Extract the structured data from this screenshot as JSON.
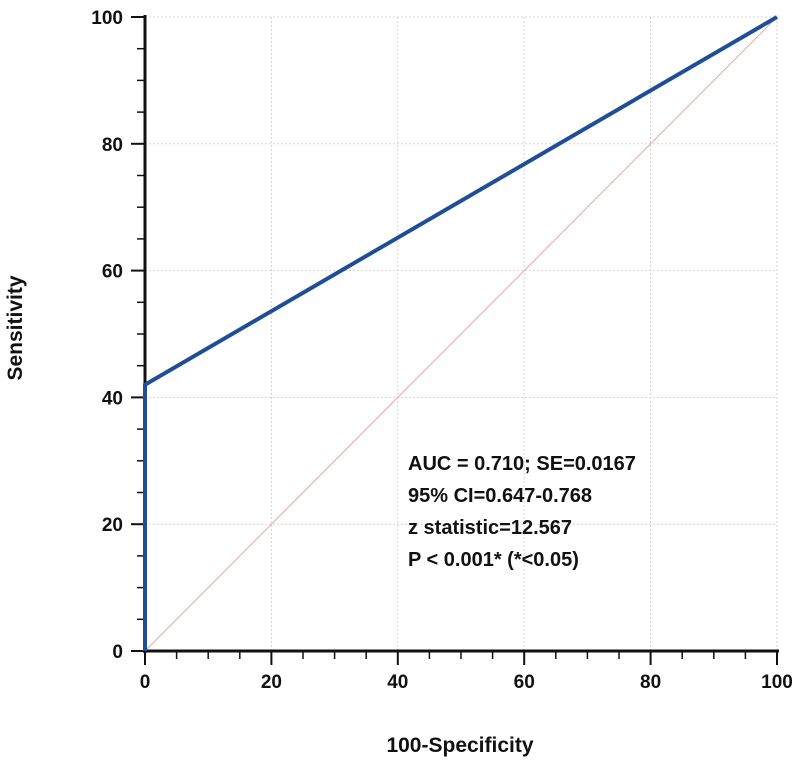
{
  "chart_data": {
    "type": "line",
    "title": "",
    "xlabel": "100-Specificity",
    "ylabel": "Sensitivity",
    "xlim": [
      0,
      100
    ],
    "ylim": [
      0,
      100
    ],
    "xticks": [
      "0",
      "20",
      "40",
      "60",
      "80",
      "100"
    ],
    "yticks": [
      "0",
      "20",
      "40",
      "60",
      "80",
      "100"
    ],
    "grid": true,
    "series": [
      {
        "color": "#1f4e96",
        "points": [
          [
            0,
            0
          ],
          [
            0,
            42
          ],
          [
            100,
            100
          ]
        ]
      }
    ],
    "reference_line": {
      "color": "#e6a6a6",
      "points": [
        [
          0,
          0
        ],
        [
          100,
          100
        ]
      ]
    },
    "annotations": [
      "AUC = 0.710; SE=0.0167",
      "95% CI=0.647-0.768",
      "z statistic=12.567",
      "P < 0.001* (*<0.05)"
    ]
  }
}
